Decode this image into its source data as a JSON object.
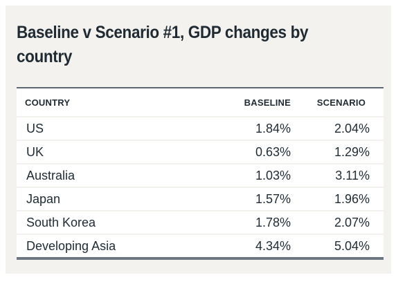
{
  "chart_data": {
    "type": "table",
    "title": "Baseline v Scenario #1, GDP changes by country",
    "columns": [
      "COUNTRY",
      "BASELINE",
      "SCENARIO"
    ],
    "rows": [
      {
        "country": "US",
        "baseline": "1.84%",
        "scenario": "2.04%"
      },
      {
        "country": "UK",
        "baseline": "0.63%",
        "scenario": "1.29%"
      },
      {
        "country": "Australia",
        "baseline": "1.03%",
        "scenario": "3.11%"
      },
      {
        "country": "Japan",
        "baseline": "1.57%",
        "scenario": "1.96%"
      },
      {
        "country": "South Korea",
        "baseline": "1.78%",
        "scenario": "2.07%"
      },
      {
        "country": "Developing Asia",
        "baseline": "4.34%",
        "scenario": "5.04%"
      }
    ]
  }
}
